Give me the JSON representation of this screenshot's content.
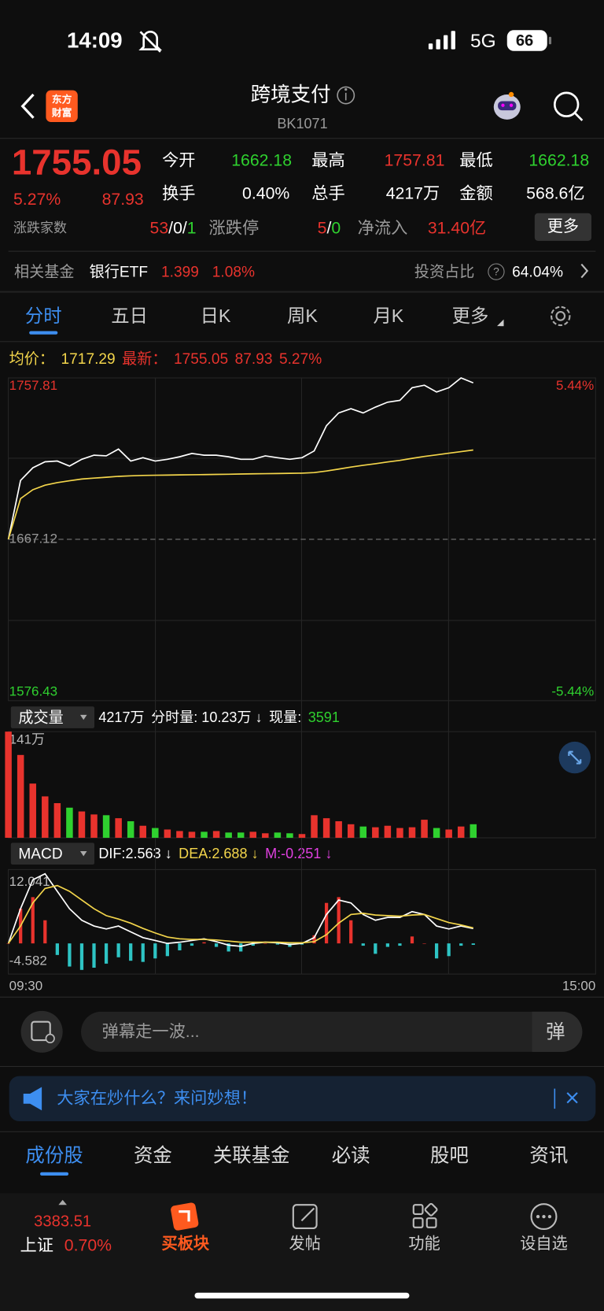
{
  "status_bar": {
    "time": "14:09",
    "network": "5G",
    "battery": "66"
  },
  "header": {
    "logo": [
      "东方",
      "财富"
    ],
    "title": "跨境支付",
    "code": "BK1071"
  },
  "quote": {
    "price": "1755.05",
    "change_pct": "5.27%",
    "change": "87.93",
    "open_label": "今开",
    "open": "1662.18",
    "high_label": "最高",
    "high": "1757.81",
    "low_label": "最低",
    "low": "1662.18",
    "turnover_label": "换手",
    "turnover": "0.40%",
    "volume_label": "总手",
    "volume": "4217万",
    "amount_label": "金额",
    "amount": "568.6亿",
    "breadth_label": "涨跌家数",
    "breadth": [
      "53",
      "/0/",
      "1"
    ],
    "limit_label": "涨跌停",
    "limit": [
      "5",
      "/",
      "0"
    ],
    "inflow_label": "净流入",
    "inflow": "31.40亿",
    "more_button": "更多"
  },
  "fund_row": {
    "label": "相关基金",
    "fund": "银行ETF",
    "price": "1.399",
    "change": "1.08%",
    "ratio_label": "投资占比",
    "help": "?",
    "ratio": "64.04%"
  },
  "chart_tabs": [
    "分时",
    "五日",
    "日K",
    "周K",
    "月K",
    "更多"
  ],
  "chart_data": [
    {
      "type": "line",
      "legend": [
        {
          "text": "均价：",
          "color": "#f3d54b"
        },
        {
          "text": "1717.29",
          "color": "#f3d54b"
        },
        {
          "text": "最新：",
          "color": "#e8332d"
        },
        {
          "text": "1755.05",
          "color": "#e8332d"
        },
        {
          "text": "87.93",
          "color": "#e8332d"
        },
        {
          "text": "5.27%",
          "color": "#e8332d"
        }
      ],
      "x": [
        "09:30",
        "09:35",
        "09:40",
        "09:45",
        "09:50",
        "09:55",
        "10:00",
        "10:05",
        "10:10",
        "10:15",
        "10:20",
        "10:25",
        "10:30",
        "10:35",
        "10:40",
        "10:45",
        "10:50",
        "10:55",
        "11:00",
        "11:05",
        "11:10",
        "11:15",
        "11:20",
        "11:25",
        "11:30",
        "13:05",
        "13:10",
        "13:15",
        "13:20",
        "13:25",
        "13:30",
        "13:35",
        "13:40",
        "13:45",
        "13:50",
        "13:55",
        "14:00",
        "14:05",
        "14:10"
      ],
      "xlim": [
        "09:30",
        "15:00"
      ],
      "ylim": [
        1576.43,
        1757.81
      ],
      "yticks": [
        1757.81,
        1667.12,
        1576.43
      ],
      "y2lim": [
        -5.44,
        5.44
      ],
      "y2ticks": [
        {
          "value": 5.44,
          "label": "5.44%"
        },
        {
          "value": -5.44,
          "label": "-5.44%"
        }
      ],
      "grid": true,
      "series": [
        {
          "color": "#ffffff",
          "values": [
            1667.12,
            1700.2,
            1707.3,
            1710.7,
            1711.1,
            1708.3,
            1712.1,
            1714.4,
            1714.0,
            1717.8,
            1711.1,
            1713.0,
            1711.1,
            1712.1,
            1713.5,
            1715.4,
            1714.4,
            1714.4,
            1713.5,
            1712.1,
            1712.1,
            1714.0,
            1713.0,
            1712.1,
            1713.0,
            1716.8,
            1731.0,
            1738.1,
            1740.5,
            1738.1,
            1741.4,
            1744.2,
            1745.2,
            1752.3,
            1753.7,
            1749.9,
            1752.3,
            1757.81,
            1755.05
          ]
        },
        {
          "color": "#f3d54b",
          "values": [
            1667.12,
            1690,
            1695,
            1697.5,
            1699,
            1700,
            1701,
            1701.5,
            1702,
            1702.5,
            1702.8,
            1703,
            1703.1,
            1703.2,
            1703.3,
            1703.4,
            1703.5,
            1703.6,
            1703.7,
            1703.8,
            1703.9,
            1704,
            1704.1,
            1704.2,
            1704.3,
            1704.6,
            1705.5,
            1706.6,
            1707.7,
            1708.7,
            1709.6,
            1710.6,
            1711.5,
            1712.6,
            1713.7,
            1714.6,
            1715.5,
            1716.4,
            1717.29
          ]
        }
      ]
    },
    {
      "type": "bar",
      "selector": "成交量",
      "legend": [
        {
          "text": "4217万",
          "color": "#ffffff"
        },
        {
          "text": "分时量: 10.23万 ↓",
          "color": "#ffffff"
        },
        {
          "text": "现量:",
          "color": "#ffffff"
        },
        {
          "text": "3591",
          "color": "#2fd12f"
        }
      ],
      "x": [
        "09:30",
        "09:35",
        "09:40",
        "09:45",
        "09:50",
        "09:55",
        "10:00",
        "10:05",
        "10:10",
        "10:15",
        "10:20",
        "10:25",
        "10:30",
        "10:35",
        "10:40",
        "10:45",
        "10:50",
        "10:55",
        "11:00",
        "11:05",
        "11:10",
        "11:15",
        "11:20",
        "11:25",
        "11:30",
        "13:05",
        "13:10",
        "13:15",
        "13:20",
        "13:25",
        "13:30",
        "13:35",
        "13:40",
        "13:45",
        "13:50",
        "13:55",
        "14:00",
        "14:05",
        "14:10"
      ],
      "xlim": [
        "09:30",
        "15:00"
      ],
      "ylim": [
        0,
        141
      ],
      "yticks": [
        {
          "value": 141,
          "label": "141万"
        }
      ],
      "up_color": "#e8332d",
      "down_color": "#2fd12f",
      "values": [
        141,
        110,
        72,
        55,
        46,
        40,
        35,
        31,
        30,
        26,
        22,
        16,
        13,
        11,
        9,
        8,
        8,
        9,
        7,
        7,
        8,
        6,
        7,
        6,
        5,
        30,
        26,
        22,
        18,
        15,
        14,
        16,
        13,
        14,
        24,
        13,
        11,
        15,
        18
      ]
    },
    {
      "type": "line",
      "selector": "MACD",
      "legend": [
        {
          "text": "DIF:2.563 ↓",
          "color": "#ffffff"
        },
        {
          "text": "DEA:2.688 ↓",
          "color": "#f3d54b"
        },
        {
          "text": "M:-0.251 ↓",
          "color": "#e040e0"
        }
      ],
      "x": [
        "09:30",
        "09:35",
        "09:40",
        "09:45",
        "09:50",
        "09:55",
        "10:00",
        "10:05",
        "10:10",
        "10:15",
        "10:20",
        "10:25",
        "10:30",
        "10:35",
        "10:40",
        "10:45",
        "10:50",
        "10:55",
        "11:00",
        "11:05",
        "11:10",
        "11:15",
        "11:20",
        "11:25",
        "11:30",
        "13:05",
        "13:10",
        "13:15",
        "13:20",
        "13:25",
        "13:30",
        "13:35",
        "13:40",
        "13:45",
        "13:50",
        "13:55",
        "14:00",
        "14:05",
        "14:10"
      ],
      "xlim": [
        "09:30",
        "15:00"
      ],
      "xticks": [
        "09:30",
        "15:00"
      ],
      "ylim": [
        -4.582,
        12.041
      ],
      "yticks": [
        12.041,
        -4.582
      ],
      "series": [
        {
          "type": "bar",
          "color": "#e8332d",
          "negative_color": "#2ec4c4",
          "values": [
            0,
            6,
            8,
            4,
            -2,
            -4,
            -4.582,
            -4.2,
            -3.5,
            -2.4,
            -3,
            -3.2,
            -2.6,
            -2.2,
            -1.2,
            -0.4,
            0.2,
            -0.6,
            -1.4,
            -1.4,
            -0.4,
            0,
            -0.2,
            -0.6,
            -0.2,
            1.4,
            7,
            8,
            4,
            -0.4,
            -1.8,
            -0.6,
            -0.4,
            1.2,
            0,
            -2.6,
            -2.2,
            -0.4,
            -0.251
          ]
        },
        {
          "color": "#ffffff",
          "values": [
            0,
            6,
            11,
            12.041,
            9,
            6,
            4,
            3,
            2.5,
            3,
            2,
            1,
            0.5,
            0,
            0.2,
            0.5,
            0.8,
            0.3,
            -0.3,
            -0.5,
            0,
            0.2,
            0.1,
            -0.2,
            0,
            1,
            5,
            7.5,
            7,
            5,
            4,
            4.5,
            4.5,
            5.5,
            5,
            3,
            2.5,
            3,
            2.563
          ]
        },
        {
          "color": "#f3d54b",
          "values": [
            0,
            3,
            7,
            9.5,
            10,
            9,
            7.5,
            6,
            4.8,
            4.2,
            3.5,
            2.6,
            1.8,
            1.1,
            0.8,
            0.7,
            0.7,
            0.6,
            0.4,
            0.2,
            0.2,
            0.2,
            0.2,
            0.1,
            0.1,
            0.3,
            1.5,
            3.5,
            5,
            5.2,
            4.9,
            4.8,
            4.7,
            4.9,
            5,
            4.3,
            3.6,
            3.2,
            2.688
          ]
        }
      ]
    }
  ],
  "comment_bar": {
    "placeholder": "弹幕走一波...",
    "button": "弹"
  },
  "banner": {
    "text": "大家在炒什么？来问妙想！"
  },
  "section_tabs": [
    "成份股",
    "资金",
    "关联基金",
    "必读",
    "股吧",
    "资讯"
  ],
  "bottom_nav": {
    "index_value": "3383.51",
    "index_name": "上证",
    "index_change": "0.70%",
    "items": [
      "买板块",
      "发帖",
      "功能",
      "设自选"
    ]
  }
}
